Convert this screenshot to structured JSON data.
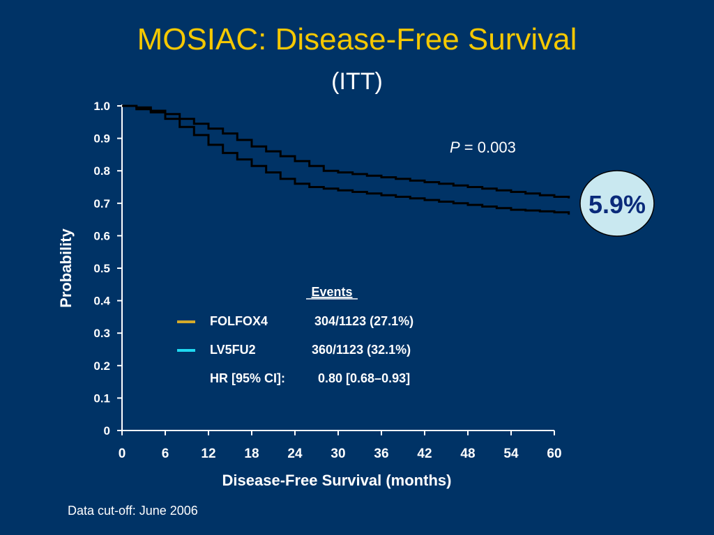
{
  "slide": {
    "title": "MOSIAC: Disease-Free Survival",
    "subtitle": "(ITT)",
    "footnote": "Data cut-off: June 2006"
  },
  "colors": {
    "background": "#003366",
    "title": "#f5c800",
    "folfox4": "#d4aa2a",
    "lv5fu2": "#1fd8f0",
    "curve": "#000000",
    "badge_fill": "#c9e8f0",
    "badge_text": "#0a2a7a"
  },
  "chart_data": {
    "type": "line",
    "xlabel": "Disease-Free Survival (months)",
    "ylabel": "Probability",
    "xlim": [
      0,
      60
    ],
    "ylim": [
      0,
      1.0
    ],
    "x_ticks": [
      "0",
      "6",
      "12",
      "18",
      "24",
      "30",
      "36",
      "42",
      "48",
      "54",
      "60"
    ],
    "y_ticks": [
      "1.0",
      "0.9",
      "0.8",
      "0.7",
      "0.6",
      "0.5",
      "0.4",
      "0.3",
      "0.2",
      "0.1",
      "0"
    ],
    "series": [
      {
        "name": "FOLFOX4",
        "color": "#d4aa2a",
        "events": "304/1123 (27.1%)",
        "x": [
          0,
          2,
          4,
          6,
          8,
          10,
          12,
          14,
          16,
          18,
          20,
          22,
          24,
          26,
          28,
          30,
          32,
          34,
          36,
          38,
          40,
          42,
          44,
          46,
          48,
          50,
          52,
          54,
          56,
          58,
          60,
          62
        ],
        "y": [
          1.0,
          0.995,
          0.985,
          0.975,
          0.96,
          0.945,
          0.93,
          0.915,
          0.895,
          0.875,
          0.86,
          0.845,
          0.83,
          0.815,
          0.8,
          0.795,
          0.79,
          0.785,
          0.78,
          0.775,
          0.77,
          0.765,
          0.76,
          0.755,
          0.75,
          0.745,
          0.74,
          0.735,
          0.73,
          0.725,
          0.72,
          0.715
        ]
      },
      {
        "name": "LV5FU2",
        "color": "#1fd8f0",
        "events": "360/1123 (32.1%)",
        "x": [
          0,
          2,
          4,
          6,
          8,
          10,
          12,
          14,
          16,
          18,
          20,
          22,
          24,
          26,
          28,
          30,
          32,
          34,
          36,
          38,
          40,
          42,
          44,
          46,
          48,
          50,
          52,
          54,
          56,
          58,
          60,
          62
        ],
        "y": [
          1.0,
          0.99,
          0.98,
          0.96,
          0.935,
          0.91,
          0.88,
          0.855,
          0.835,
          0.815,
          0.795,
          0.775,
          0.76,
          0.75,
          0.745,
          0.74,
          0.735,
          0.73,
          0.725,
          0.72,
          0.715,
          0.71,
          0.705,
          0.7,
          0.695,
          0.69,
          0.685,
          0.68,
          0.678,
          0.675,
          0.672,
          0.665
        ]
      }
    ],
    "legend": {
      "header": "Events",
      "hr_label": "HR [95% CI]:",
      "hr_value": "0.80 [0.68–0.93]"
    },
    "p_value_label": "P",
    "p_value_text": "= 0.003",
    "difference_badge": "5.9%"
  }
}
